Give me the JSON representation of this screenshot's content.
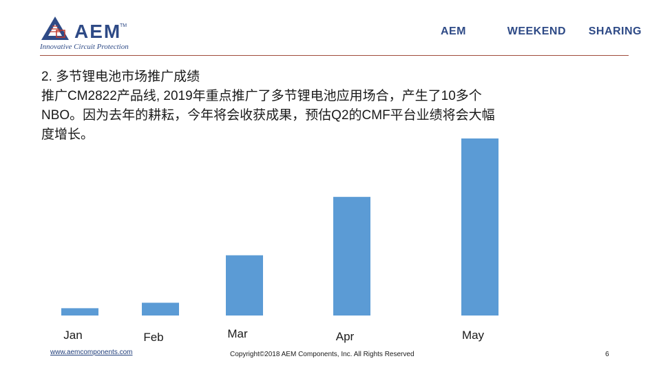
{
  "header": {
    "logo_text": "AEM",
    "logo_tm": "TM",
    "tagline": "Innovative Circuit Protection",
    "nav": [
      "AEM",
      "WEEKEND",
      "SHARING"
    ]
  },
  "slide": {
    "heading_lines": [
      "2. 多节锂电池市场推广成绩",
      "推广CM2822产品线, 2019年重点推广了多节锂电池应用场合，产生了10多个",
      "NBO。因为去年的耕耘，今年将会收获成果，预估Q2的CMF平台业绩将会大幅",
      "度增长。"
    ]
  },
  "chart_data": {
    "type": "bar",
    "categories": [
      "Jan",
      "Feb",
      "Mar",
      "Apr",
      "May"
    ],
    "values": [
      4,
      7,
      33,
      65,
      97
    ],
    "ylim": [
      0,
      100
    ],
    "color": "#5b9bd5",
    "grid": false,
    "legend": "none"
  },
  "footer": {
    "website": "www.aemcomponents.com",
    "copyright": "Copyright©2018 AEM Components, Inc. All Rights Reserved",
    "page": "6"
  },
  "colors": {
    "brand": "#2e4a86",
    "divider": "#a04a3a",
    "bar": "#5b9bd5"
  }
}
